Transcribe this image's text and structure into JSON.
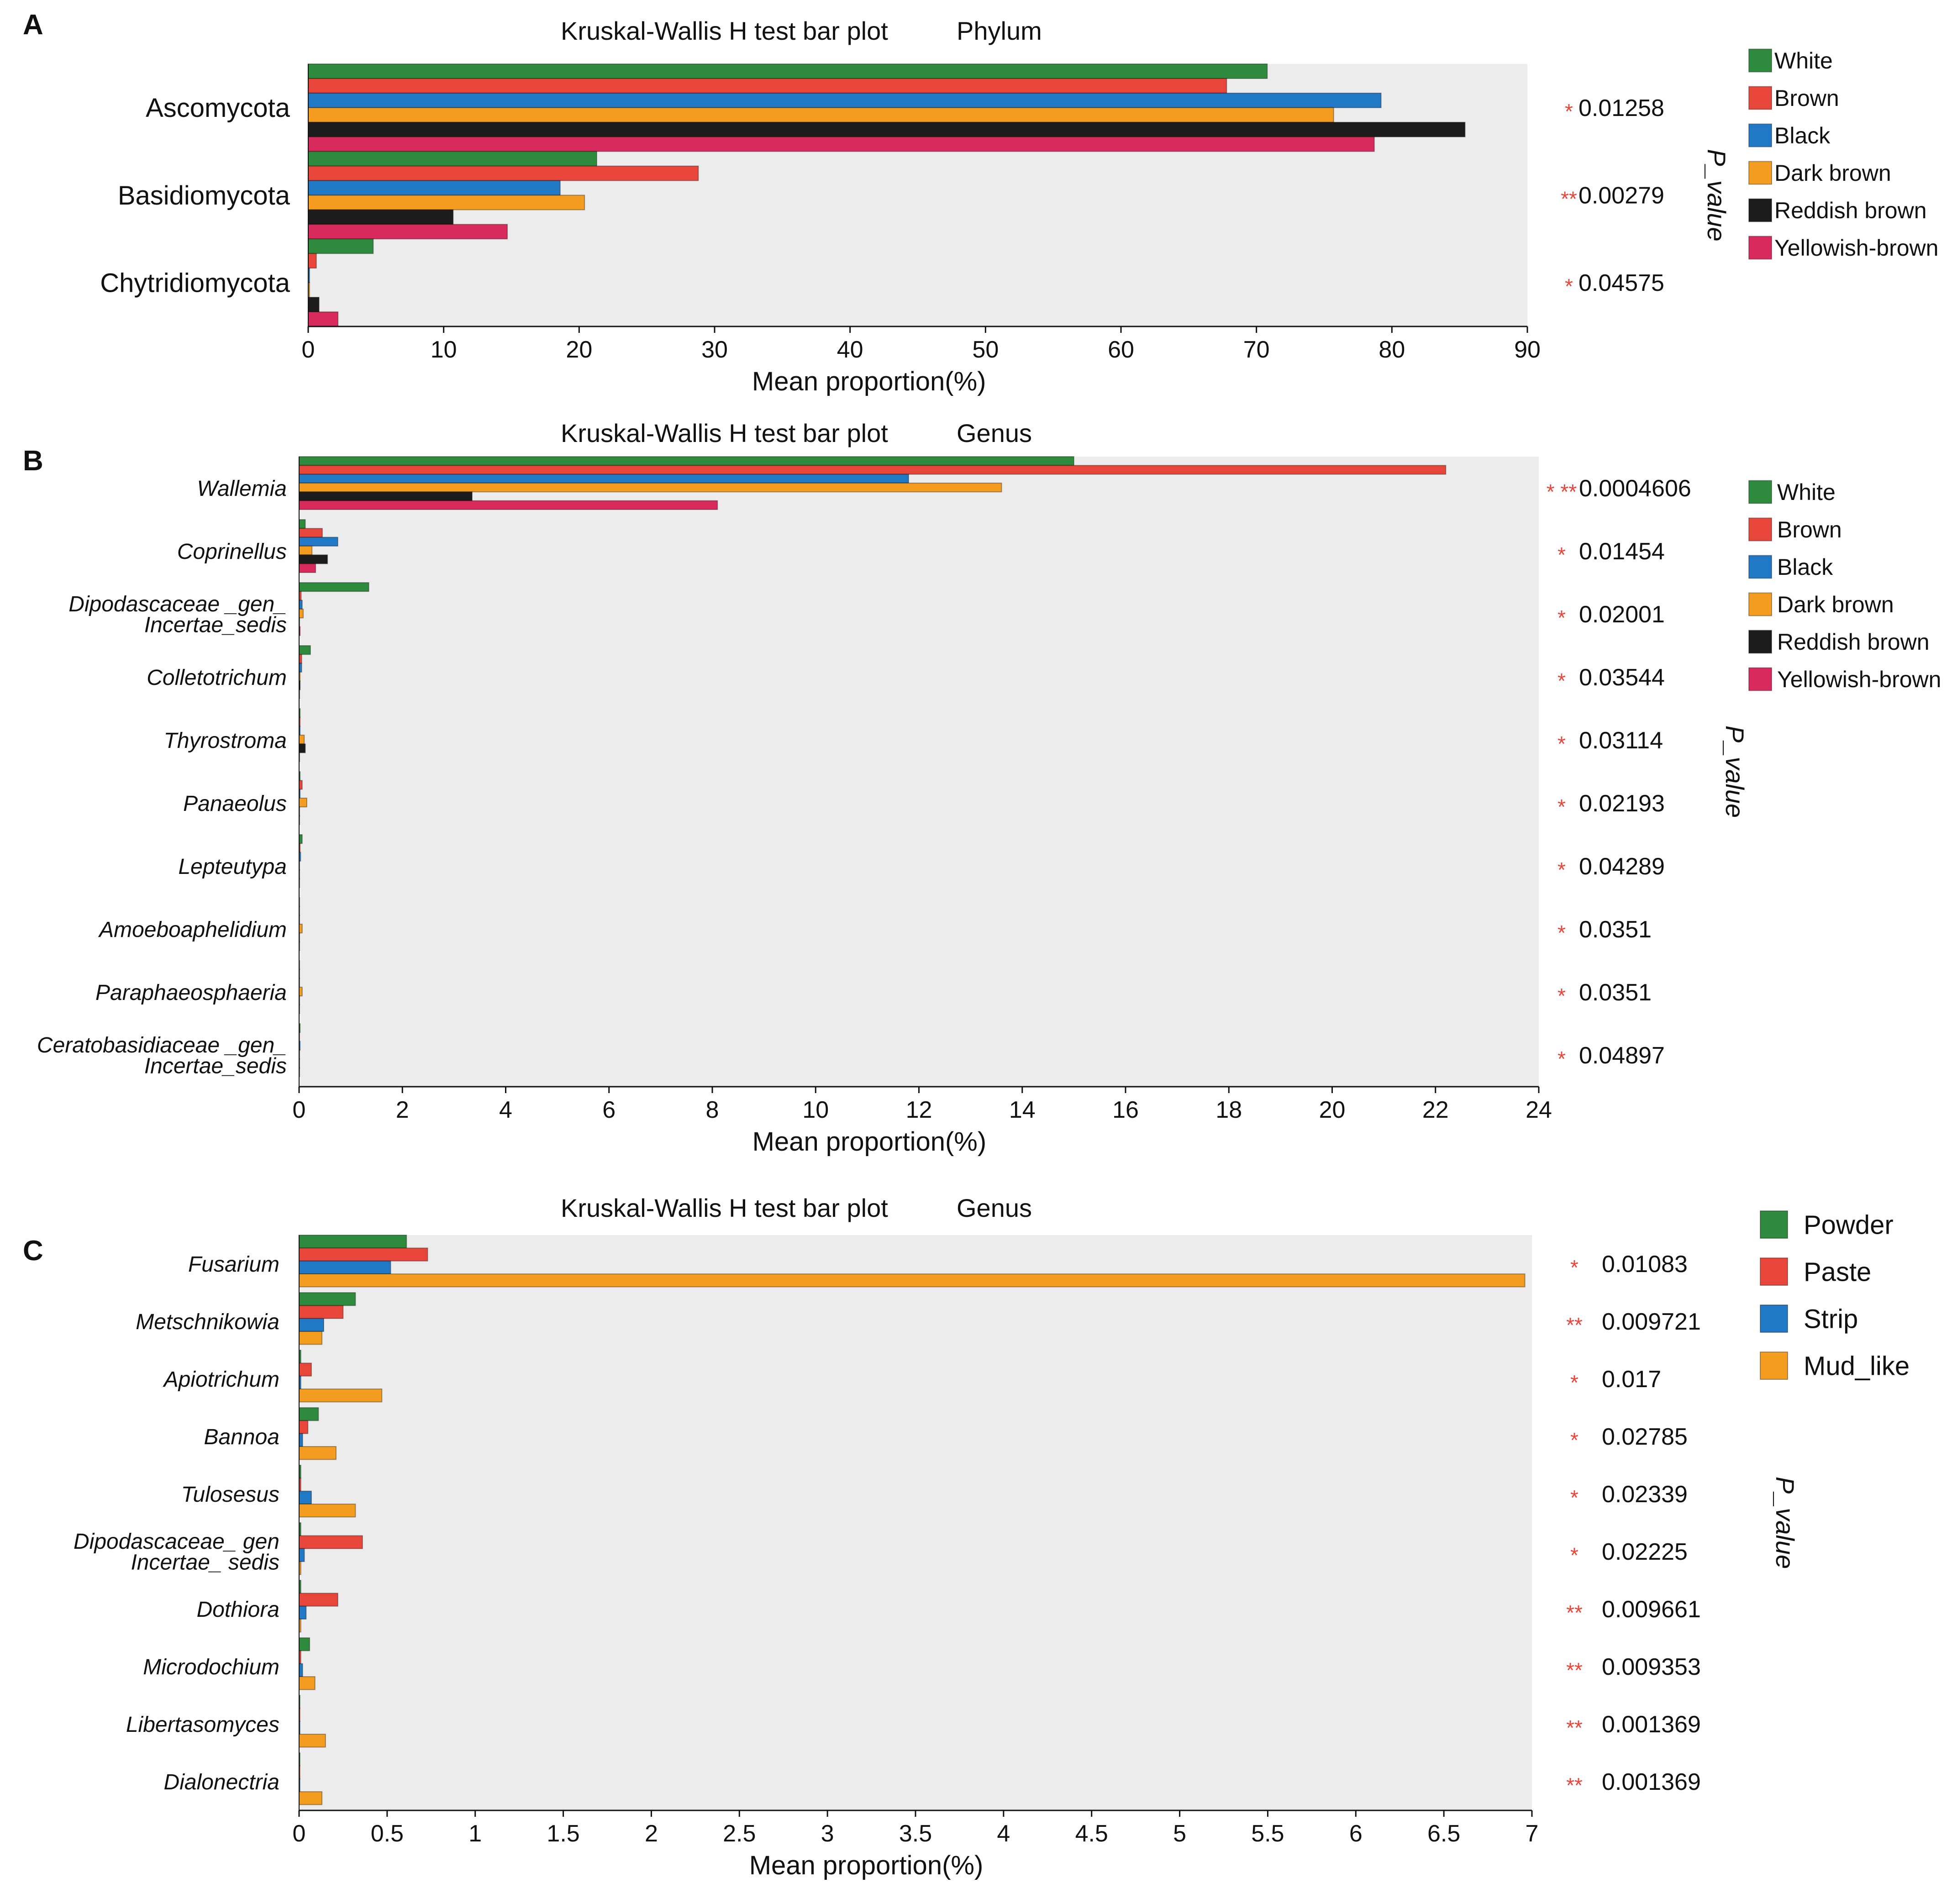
{
  "chart_data": [
    {
      "panel": "A",
      "type": "bar",
      "orientation": "horizontal",
      "title": "Kruskal-Wallis H test bar plot",
      "subtitle": "Phylum",
      "xlabel": "Mean proportion(%)",
      "p_label": "P_value",
      "xlim": [
        0,
        90
      ],
      "ticks": [
        0,
        10,
        20,
        30,
        40,
        50,
        60,
        70,
        80,
        90
      ],
      "italic_categories": false,
      "categories": [
        {
          "lines": [
            "Ascomycota"
          ],
          "stars": "*",
          "p": "0.01258"
        },
        {
          "lines": [
            "Basidiomycota"
          ],
          "stars": "**",
          "p": "0.00279"
        },
        {
          "lines": [
            "Chytridiomycota"
          ],
          "stars": "*",
          "p": "0.04575"
        }
      ],
      "series": [
        {
          "name": "White",
          "color": "#2e8b3e",
          "values": [
            70.8,
            21.3,
            4.8
          ]
        },
        {
          "name": "Brown",
          "color": "#e8463a",
          "values": [
            67.8,
            28.8,
            0.6
          ]
        },
        {
          "name": "Black",
          "color": "#2178c4",
          "values": [
            79.2,
            18.6,
            0.1
          ]
        },
        {
          "name": "Dark brown",
          "color": "#f39c1f",
          "values": [
            75.7,
            20.4,
            0.1
          ]
        },
        {
          "name": "Reddish brown",
          "color": "#1c1c1c",
          "values": [
            85.4,
            10.7,
            0.8
          ]
        },
        {
          "name": "Yellowish-brown",
          "color": "#d92a5e",
          "values": [
            78.7,
            14.7,
            2.2
          ]
        }
      ],
      "legend_position": "right"
    },
    {
      "panel": "B",
      "type": "bar",
      "orientation": "horizontal",
      "title": "Kruskal-Wallis H test bar plot",
      "subtitle": "Genus",
      "xlabel": "Mean proportion(%)",
      "p_label": "P_value",
      "xlim": [
        0,
        24
      ],
      "ticks": [
        0,
        2,
        4,
        6,
        8,
        10,
        12,
        14,
        16,
        18,
        20,
        22,
        24
      ],
      "italic_categories": true,
      "categories": [
        {
          "lines": [
            "Wallemia"
          ],
          "stars": "* **",
          "p": "0.0004606"
        },
        {
          "lines": [
            "Coprinellus"
          ],
          "stars": "*",
          "p": "0.01454"
        },
        {
          "lines": [
            "Dipodascaceae _gen_",
            "Incertae_sedis"
          ],
          "stars": "*",
          "p": "0.02001"
        },
        {
          "lines": [
            "Colletotrichum"
          ],
          "stars": "*",
          "p": "0.03544"
        },
        {
          "lines": [
            "Thyrostroma"
          ],
          "stars": "*",
          "p": "0.03114"
        },
        {
          "lines": [
            "Panaeolus"
          ],
          "stars": "*",
          "p": "0.02193"
        },
        {
          "lines": [
            "Lepteutypa"
          ],
          "stars": "*",
          "p": "0.04289"
        },
        {
          "lines": [
            "Amoeboaphelidium"
          ],
          "stars": "*",
          "p": "0.0351"
        },
        {
          "lines": [
            "Paraphaeosphaeria"
          ],
          "stars": "*",
          "p": "0.0351"
        },
        {
          "lines": [
            "Ceratobasidiaceae _gen_",
            "Incertae_sedis"
          ],
          "stars": "*",
          "p": "0.04897"
        }
      ],
      "series": [
        {
          "name": "White",
          "color": "#2e8b3e",
          "values": [
            15.0,
            0.12,
            1.35,
            0.22,
            0.02,
            0.02,
            0.06,
            0.01,
            0.01,
            0.02
          ]
        },
        {
          "name": "Brown",
          "color": "#e8463a",
          "values": [
            22.2,
            0.45,
            0.04,
            0.05,
            0.02,
            0.06,
            0.02,
            0.01,
            0.01,
            0.01
          ]
        },
        {
          "name": "Black",
          "color": "#2178c4",
          "values": [
            11.8,
            0.75,
            0.06,
            0.05,
            0.02,
            0.02,
            0.03,
            0.01,
            0.01,
            0.02
          ]
        },
        {
          "name": "Dark brown",
          "color": "#f39c1f",
          "values": [
            13.6,
            0.25,
            0.08,
            0.02,
            0.1,
            0.15,
            0.01,
            0.06,
            0.06,
            0.01
          ]
        },
        {
          "name": "Reddish brown",
          "color": "#1c1c1c",
          "values": [
            3.35,
            0.55,
            0.01,
            0.02,
            0.12,
            0.01,
            0.01,
            0.01,
            0.01,
            0.01
          ]
        },
        {
          "name": "Yellowish-brown",
          "color": "#d92a5e",
          "values": [
            8.1,
            0.32,
            0.02,
            0.01,
            0.01,
            0.01,
            0.01,
            0.01,
            0.01,
            0.01
          ]
        }
      ],
      "legend_position": "right"
    },
    {
      "panel": "C",
      "type": "bar",
      "orientation": "horizontal",
      "title": "Kruskal-Wallis H test bar plot",
      "subtitle": "Genus",
      "xlabel": "Mean proportion(%)",
      "p_label": "P_value",
      "xlim": [
        0,
        7
      ],
      "ticks": [
        0,
        0.5,
        1,
        1.5,
        2,
        2.5,
        3,
        3.5,
        4,
        4.5,
        5,
        5.5,
        6,
        6.5,
        7
      ],
      "italic_categories": true,
      "categories": [
        {
          "lines": [
            "Fusarium"
          ],
          "stars": "*",
          "p": "0.01083"
        },
        {
          "lines": [
            "Metschnikowia"
          ],
          "stars": "**",
          "p": "0.009721"
        },
        {
          "lines": [
            "Apiotrichum"
          ],
          "stars": "*",
          "p": "0.017"
        },
        {
          "lines": [
            "Bannoa"
          ],
          "stars": "*",
          "p": "0.02785"
        },
        {
          "lines": [
            "Tulosesus"
          ],
          "stars": "*",
          "p": "0.02339"
        },
        {
          "lines": [
            "Dipodascaceae_ gen",
            "Incertae_ sedis"
          ],
          "stars": "*",
          "p": "0.02225"
        },
        {
          "lines": [
            "Dothiora"
          ],
          "stars": "**",
          "p": "0.009661"
        },
        {
          "lines": [
            "Microdochium"
          ],
          "stars": "**",
          "p": "0.009353"
        },
        {
          "lines": [
            "Libertasomyces"
          ],
          "stars": "**",
          "p": "0.001369"
        },
        {
          "lines": [
            "Dialonectria"
          ],
          "stars": "**",
          "p": "0.001369"
        }
      ],
      "series": [
        {
          "name": "Powder",
          "color": "#2e8b3e",
          "values": [
            0.61,
            0.32,
            0.01,
            0.11,
            0.01,
            0.01,
            0.01,
            0.06,
            0.005,
            0.005
          ]
        },
        {
          "name": "Paste",
          "color": "#e8463a",
          "values": [
            0.73,
            0.25,
            0.07,
            0.05,
            0.01,
            0.36,
            0.22,
            0.01,
            0.005,
            0.005
          ]
        },
        {
          "name": "Strip",
          "color": "#2178c4",
          "values": [
            0.52,
            0.14,
            0.01,
            0.02,
            0.07,
            0.03,
            0.04,
            0.02,
            0.005,
            0.005
          ]
        },
        {
          "name": "Mud_like",
          "color": "#f39c1f",
          "values": [
            6.96,
            0.13,
            0.47,
            0.21,
            0.32,
            0.01,
            0.01,
            0.09,
            0.15,
            0.13
          ]
        }
      ],
      "legend_position": "right"
    }
  ]
}
